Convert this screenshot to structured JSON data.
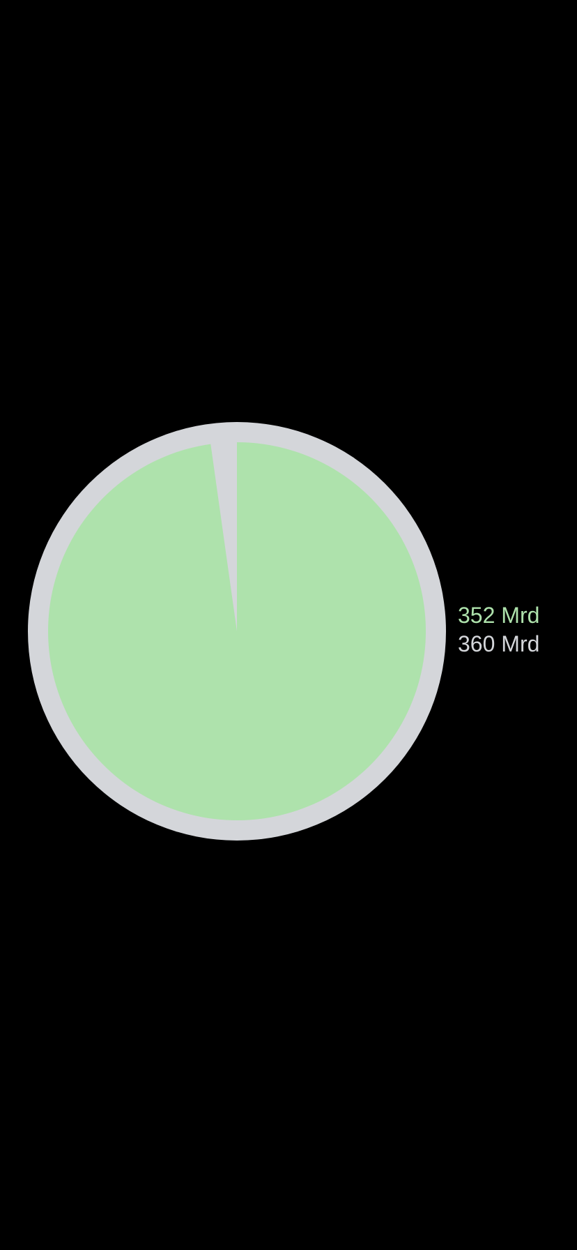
{
  "chart_data": {
    "type": "pie",
    "used": 352,
    "total": 360,
    "used_label": "352 Mrd",
    "total_label": "360 Mrd",
    "colors": {
      "used": "#AEE2AC",
      "total": "#D4D6DA",
      "background": "#000000"
    }
  }
}
